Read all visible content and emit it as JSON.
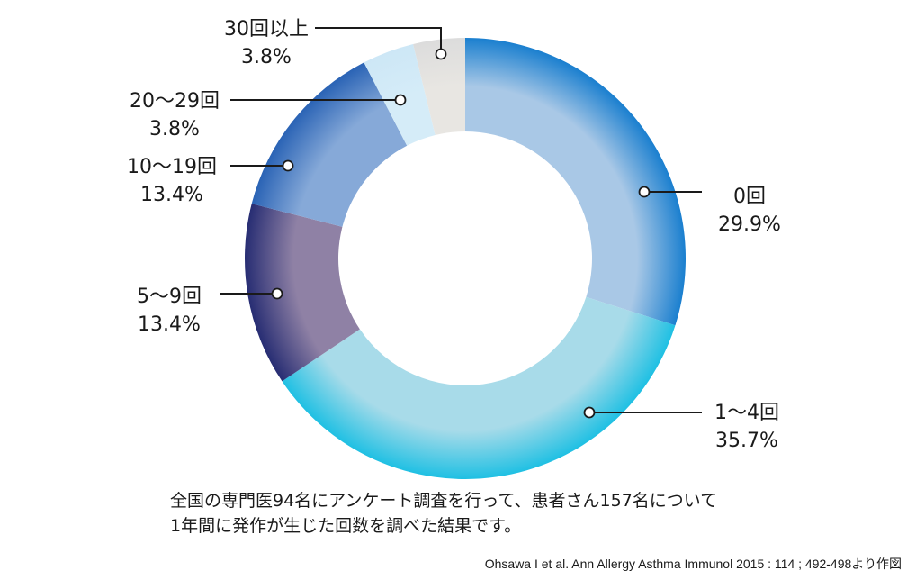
{
  "chart_data": {
    "type": "pie",
    "variant": "donut",
    "categories": [
      "0回",
      "1〜4回",
      "5〜9回",
      "10〜19回",
      "20〜29回",
      "30回以上"
    ],
    "values": [
      29.9,
      35.7,
      13.4,
      13.4,
      3.8,
      3.8
    ],
    "value_labels": [
      "29.9%",
      "35.7%",
      "13.4%",
      "13.4%",
      "3.8%",
      "3.8%"
    ],
    "colors": [
      "#1a7fcf",
      "#1fc0e3",
      "#272d73",
      "#2a63b5",
      "#cde7f6",
      "#dcdcdc"
    ],
    "inner_colors": [
      "#a9c8e6",
      "#a8dbe9",
      "#8f81a5",
      "#86a9d8",
      "#d5ecf8",
      "#e8e6e2"
    ],
    "legend": "callouts",
    "title": "",
    "xlabel": "",
    "ylabel": ""
  },
  "caption": {
    "line1": "全国の専門医94名にアンケート調査を行って、患者さん157名について",
    "line2": "1年間に発作が生じた回数を調べた結果です。"
  },
  "source": "Ohsawa I et al. Ann Allergy Asthma Immunol 2015 : 114 ; 492-498より作図"
}
